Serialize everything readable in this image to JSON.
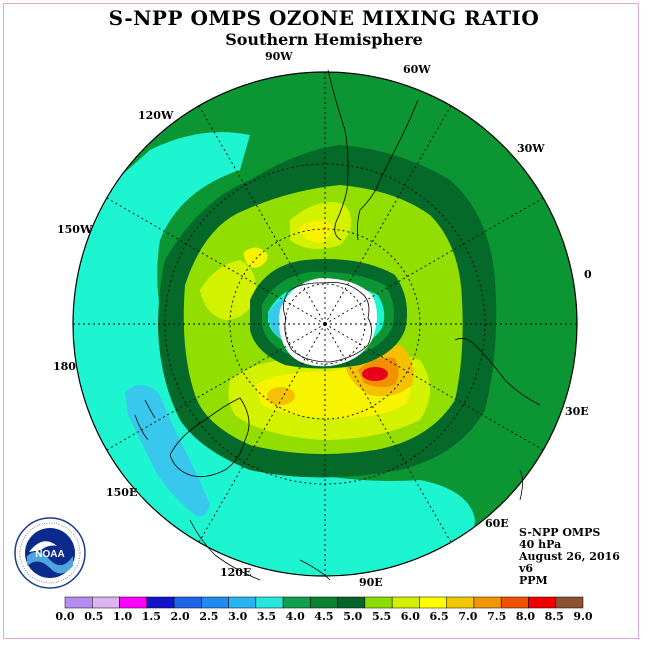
{
  "header": {
    "title": "S-NPP OMPS OZONE MIXING RATIO",
    "subtitle": "Southern Hemisphere"
  },
  "map": {
    "projection": "south-polar-stereographic",
    "longitude_labels": [
      "90W",
      "60W",
      "30W",
      "0",
      "30E",
      "60E",
      "90E",
      "120E",
      "150E",
      "180",
      "150W",
      "120W"
    ],
    "field_colors": {
      "ocean_low": "#1cf5d0",
      "low_patch": "#38c8ee",
      "mid_green": "#0b9633",
      "dark_green": "#05692a",
      "light_green": "#92de00",
      "yellow_green": "#d2f200",
      "yellow": "#f8f400",
      "gold": "#f4c000",
      "orange": "#f39000",
      "red": "#e8001a",
      "polar_night": "#ffffff"
    }
  },
  "info_box": {
    "product": "S-NPP OMPS",
    "level": "40 hPa",
    "date": "August 26, 2016",
    "version": "v6",
    "units": "PPM"
  },
  "logo": {
    "text": "NOAA",
    "ring_text": "NATIONAL OCEANIC AND ATMOSPHERIC ADMINISTRATION · U.S. DEPARTMENT OF COMMERCE"
  },
  "colorbar": {
    "ticks": [
      "0.0",
      "0.5",
      "1.0",
      "1.5",
      "2.0",
      "2.5",
      "3.0",
      "3.5",
      "4.0",
      "4.5",
      "5.0",
      "5.5",
      "6.0",
      "6.5",
      "7.0",
      "7.5",
      "8.0",
      "8.5",
      "9.0"
    ],
    "colors": [
      "#b48cf0",
      "#dcb4f0",
      "#ff00ff",
      "#1414cc",
      "#1e64e6",
      "#1e8cf0",
      "#28b4f0",
      "#28e6dc",
      "#0fa050",
      "#0b8232",
      "#05642a",
      "#8cdc00",
      "#d2f000",
      "#ffff00",
      "#f0c800",
      "#f09600",
      "#f05000",
      "#f00000",
      "#8c5032"
    ]
  }
}
